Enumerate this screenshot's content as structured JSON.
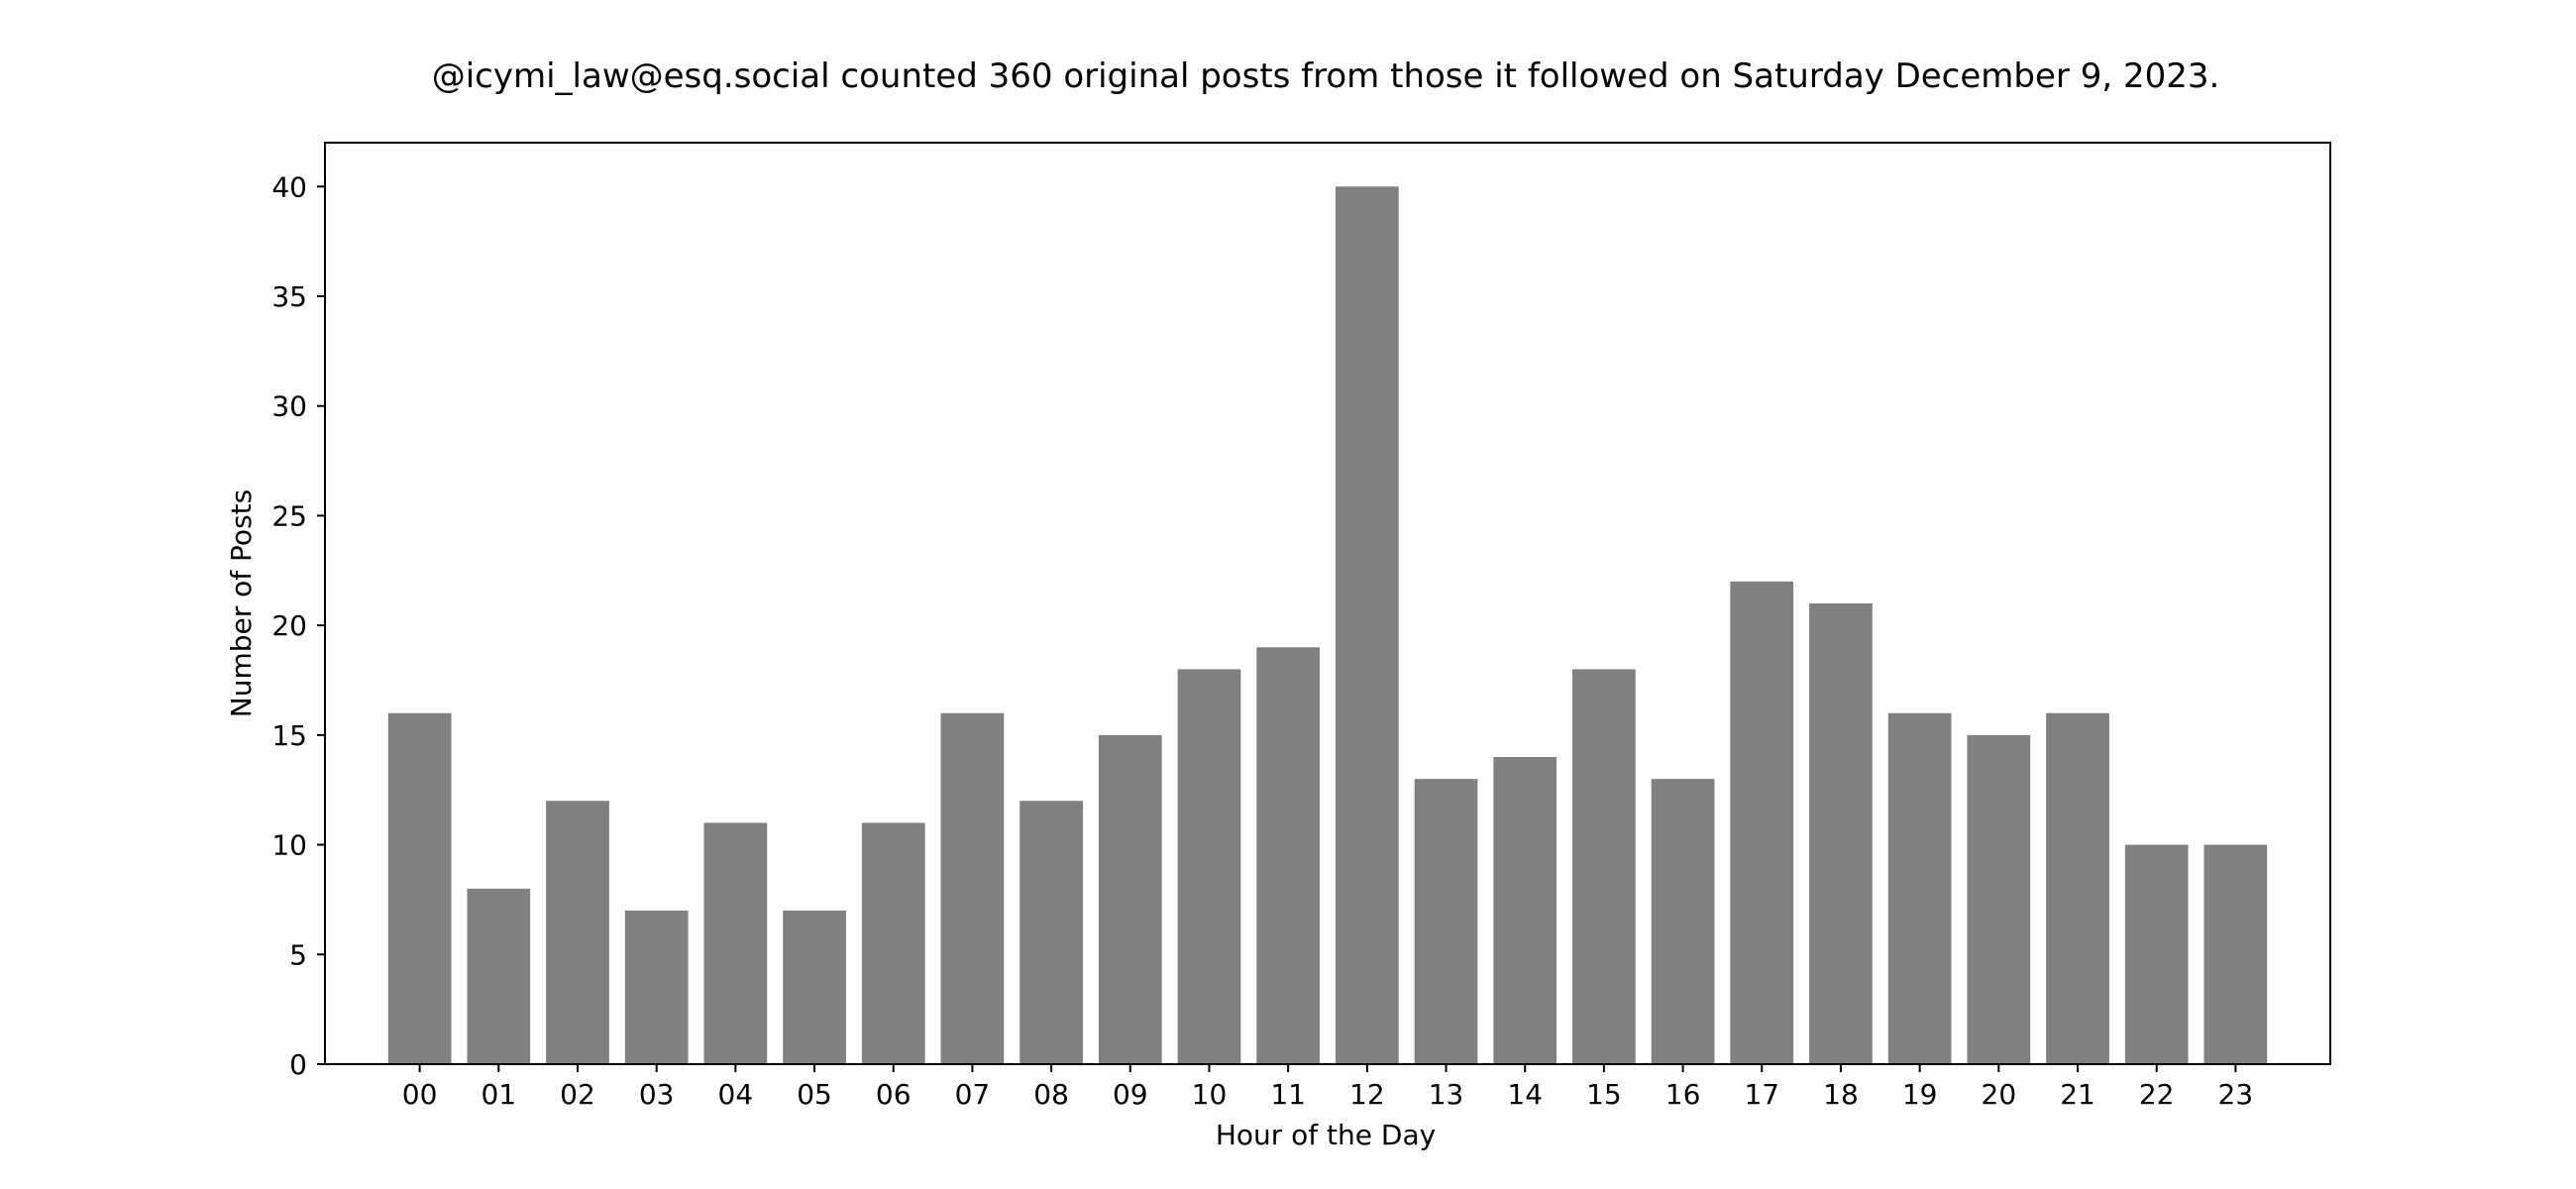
{
  "chart_data": {
    "type": "bar",
    "title": "@icymi_law@esq.social counted 360 original posts from those it followed on Saturday December 9, 2023.",
    "xlabel": "Hour of the Day",
    "ylabel": "Number of Posts",
    "categories": [
      "00",
      "01",
      "02",
      "03",
      "04",
      "05",
      "06",
      "07",
      "08",
      "09",
      "10",
      "11",
      "12",
      "13",
      "14",
      "15",
      "16",
      "17",
      "18",
      "19",
      "20",
      "21",
      "22",
      "23"
    ],
    "values": [
      16,
      8,
      12,
      7,
      11,
      7,
      11,
      16,
      12,
      15,
      18,
      19,
      40,
      13,
      14,
      18,
      13,
      22,
      21,
      16,
      15,
      16,
      10,
      10
    ],
    "ylim": [
      0,
      42
    ],
    "yticks": [
      0,
      5,
      10,
      15,
      20,
      25,
      30,
      35,
      40
    ],
    "bar_color": "#808080",
    "grid": false,
    "legend": "none"
  }
}
